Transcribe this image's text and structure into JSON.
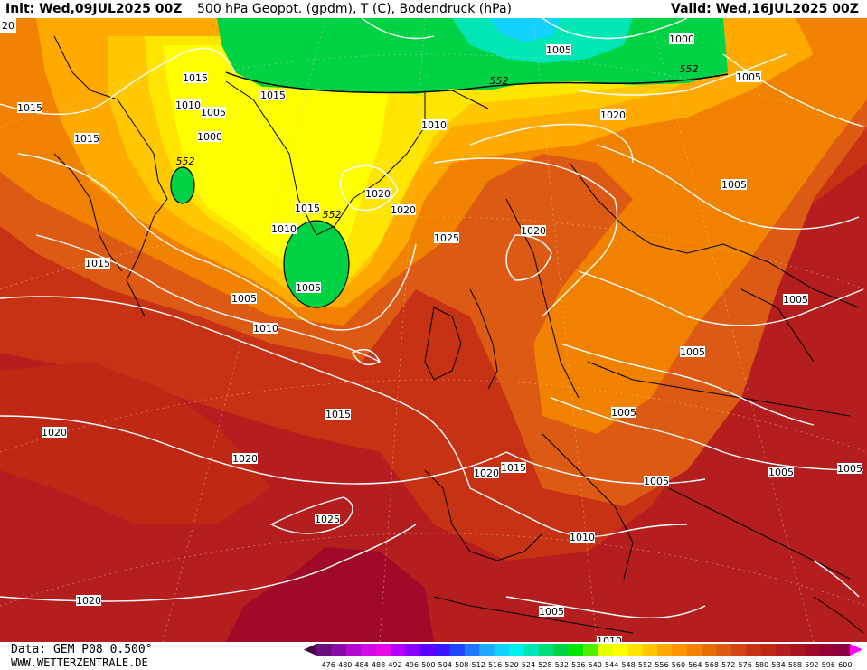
{
  "header": {
    "init": "Init: Wed,09JUL2025 00Z",
    "title": "500 hPa Geopot. (gpdm), T (C), Bodendruck (hPa)",
    "valid": "Valid: Wed,16JUL2025 00Z"
  },
  "footer": {
    "data_source": "Data: GEM P08 0.500°",
    "website": "WWW.WETTERZENTRALE.DE"
  },
  "colors": {
    "scale": [
      "#4a0044",
      "#6a0b7e",
      "#8a0aa8",
      "#b40acf",
      "#d20ae6",
      "#e60ae6",
      "#b400ff",
      "#8a00ff",
      "#5a00ff",
      "#3a14ff",
      "#1e46ff",
      "#1e78ff",
      "#1eaaff",
      "#14d2ff",
      "#00f0f0",
      "#00e6b4",
      "#00dc78",
      "#00d246",
      "#00e600",
      "#50f000",
      "#e6ff00",
      "#ffff00",
      "#ffe600",
      "#ffc800",
      "#ffaa00",
      "#ff9600",
      "#f08200",
      "#e66e00",
      "#dc5a14",
      "#d24614",
      "#c83214",
      "#be2814",
      "#b41e1e",
      "#aa141e",
      "#a00a28",
      "#960032",
      "#8c0040",
      "#ff00ff"
    ]
  },
  "colorbar": {
    "ticks": [
      "476",
      "480",
      "484",
      "488",
      "492",
      "496",
      "500",
      "504",
      "508",
      "512",
      "516",
      "520",
      "524",
      "528",
      "532",
      "536",
      "540",
      "544",
      "548",
      "552",
      "556",
      "560",
      "564",
      "568",
      "572",
      "576",
      "580",
      "584",
      "588",
      "592",
      "596",
      "600"
    ]
  },
  "map": {
    "isobar_labels": [
      {
        "text": "1015"
      },
      {
        "text": "1010"
      },
      {
        "text": "1005"
      },
      {
        "text": "1000"
      },
      {
        "text": "1015"
      },
      {
        "text": "1010"
      },
      {
        "text": "1015"
      },
      {
        "text": "1015"
      },
      {
        "text": "1020"
      },
      {
        "text": "1005"
      },
      {
        "text": "1010"
      },
      {
        "text": "1015"
      },
      {
        "text": "1020"
      },
      {
        "text": "1025"
      },
      {
        "text": "1020"
      },
      {
        "text": "1020"
      },
      {
        "text": "1010"
      },
      {
        "text": "1015"
      },
      {
        "text": "1005"
      },
      {
        "text": "1000"
      },
      {
        "text": "1005"
      },
      {
        "text": "1005"
      },
      {
        "text": "1005"
      },
      {
        "text": "1005"
      },
      {
        "text": "1015"
      },
      {
        "text": "1020"
      },
      {
        "text": "1020"
      },
      {
        "text": "1015"
      },
      {
        "text": "1005"
      },
      {
        "text": "1005"
      },
      {
        "text": "1025"
      },
      {
        "text": "1010"
      },
      {
        "text": "1020"
      },
      {
        "text": "1020"
      },
      {
        "text": "1005"
      },
      {
        "text": "1005"
      },
      {
        "text": "1005"
      },
      {
        "text": "1005"
      },
      {
        "text": "1010"
      }
    ],
    "geopot_labels": [
      "552",
      "552",
      "552",
      "552"
    ],
    "corner_label": "20"
  }
}
